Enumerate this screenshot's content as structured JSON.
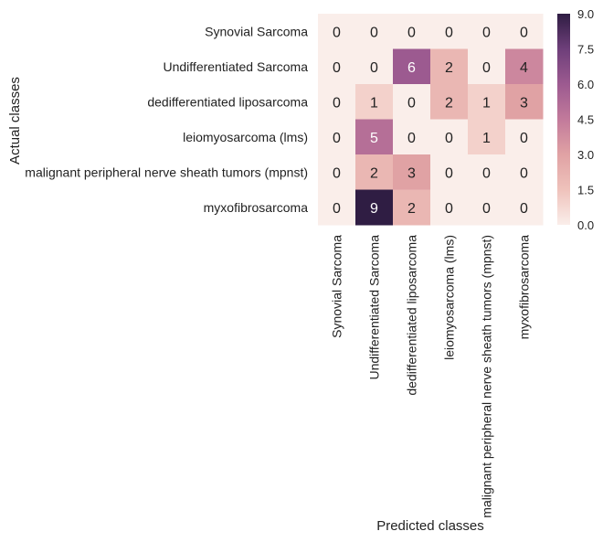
{
  "chart_data": {
    "type": "heatmap",
    "title": "",
    "xlabel": "Predicted classes",
    "ylabel": "Actual classes",
    "row_labels": [
      "Synovial Sarcoma",
      "Undifferentiated Sarcoma",
      "dedifferentiated liposarcoma",
      "leiomyosarcoma (lms)",
      "malignant peripheral nerve sheath tumors (mpnst)",
      "myxofibrosarcoma"
    ],
    "col_labels": [
      "Synovial Sarcoma",
      "Undifferentiated Sarcoma",
      "dedifferentiated liposarcoma",
      "leiomyosarcoma (lms)",
      "malignant peripheral nerve sheath tumors (mpnst)",
      "myxofibrosarcoma"
    ],
    "values": [
      [
        0,
        0,
        0,
        0,
        0,
        0
      ],
      [
        0,
        0,
        6,
        2,
        0,
        4
      ],
      [
        0,
        1,
        0,
        2,
        1,
        3
      ],
      [
        0,
        5,
        0,
        0,
        1,
        0
      ],
      [
        0,
        2,
        3,
        0,
        0,
        0
      ],
      [
        0,
        9,
        2,
        0,
        0,
        0
      ]
    ],
    "value_range": [
      0,
      9
    ],
    "colorbar_ticks": [
      "0.0",
      "1.5",
      "3.0",
      "4.5",
      "6.0",
      "7.5",
      "9.0"
    ],
    "colormap": [
      "#faeeea",
      "#efc2bb",
      "#e0a2a4",
      "#c27a9b",
      "#9c5a90",
      "#6e3f7a",
      "#2f1d43"
    ],
    "annotation_colors": {
      "dark": "#222222",
      "light": "#ffffff"
    },
    "grid": false
  }
}
